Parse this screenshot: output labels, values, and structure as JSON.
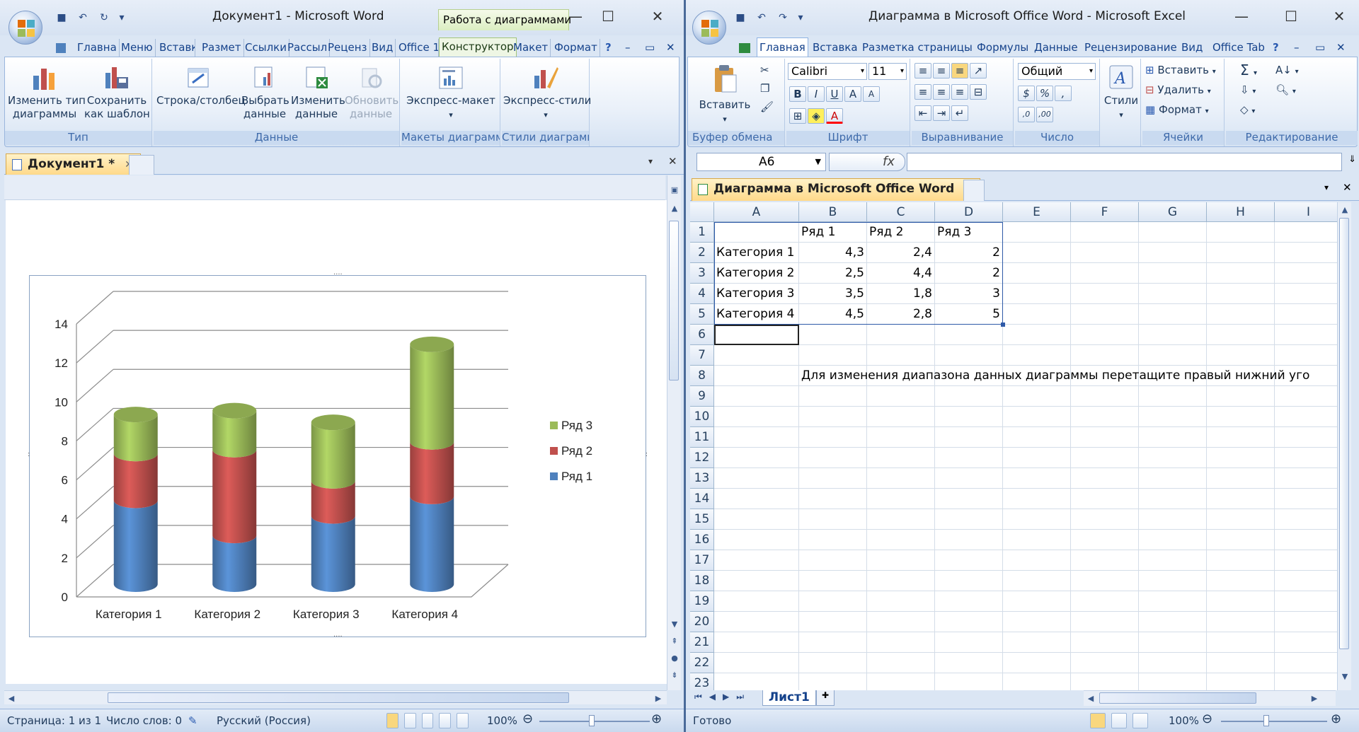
{
  "word": {
    "title": "Документ1 - Microsoft Word",
    "context_tab": "Работа с диаграммами",
    "tabs": [
      "Главна",
      "Меню",
      "Вставка",
      "Размет",
      "Ссылки",
      "Рассыл",
      "Реценз",
      "Вид",
      "Office 1",
      "Конструктор",
      "Макет",
      "Формат"
    ],
    "ribbon": {
      "groups": [
        {
          "label": "Тип",
          "buttons": [
            {
              "label1": "Изменить тип",
              "label2": "диаграммы",
              "icon": "chart-type-icon"
            },
            {
              "label1": "Сохранить",
              "label2": "как шаблон",
              "icon": "save-template-icon"
            }
          ]
        },
        {
          "label": "Данные",
          "buttons": [
            {
              "label1": "Строка/столбец",
              "label2": "",
              "icon": "switch-row-column-icon"
            },
            {
              "label1": "Выбрать",
              "label2": "данные",
              "icon": "select-data-icon"
            },
            {
              "label1": "Изменить",
              "label2": "данные",
              "icon": "edit-data-icon"
            },
            {
              "label1": "Обновить",
              "label2": "данные",
              "icon": "refresh-data-icon"
            }
          ]
        },
        {
          "label": "Макеты диаграмм",
          "buttons": [
            {
              "label1": "Экспресс-макет",
              "label2": "",
              "icon": "quick-layout-icon"
            }
          ]
        },
        {
          "label": "Стили диаграмм",
          "buttons": [
            {
              "label1": "Экспресс-стили",
              "label2": "",
              "icon": "quick-styles-icon"
            }
          ]
        }
      ]
    },
    "doc_tab": "Документ1 *",
    "status": {
      "page": "Страница: 1 из 1",
      "words": "Число слов: 0",
      "lang": "Русский (Россия)",
      "zoom": "100%"
    }
  },
  "chart_data": {
    "type": "bar",
    "categories": [
      "Категория 1",
      "Категория 2",
      "Категория 3",
      "Категория 4"
    ],
    "series": [
      {
        "name": "Ряд 1",
        "values": [
          4.3,
          2.5,
          3.5,
          4.5
        ],
        "color": "#4f81bd"
      },
      {
        "name": "Ряд 2",
        "values": [
          2.4,
          4.4,
          1.8,
          2.8
        ],
        "color": "#c0504d"
      },
      {
        "name": "Ряд 3",
        "values": [
          2,
          2,
          3,
          5
        ],
        "color": "#9bbb59"
      }
    ],
    "stacked": true,
    "yticks": [
      "0",
      "2",
      "4",
      "6",
      "8",
      "10",
      "12",
      "14"
    ],
    "ylim": [
      0,
      14
    ],
    "legend_position": "right",
    "grid": true
  },
  "excel": {
    "title": "Диаграмма в Microsoft Office Word - Microsoft Excel",
    "tabs": [
      "Главная",
      "Вставка",
      "Разметка страницы",
      "Формулы",
      "Данные",
      "Рецензирование",
      "Вид",
      "Office Tab"
    ],
    "font_name": "Calibri",
    "font_size": "11",
    "number_format": "Общий",
    "paste_label": "Вставить",
    "styles_label": "Стили",
    "cells_buttons": [
      "Вставить",
      "Удалить",
      "Формат"
    ],
    "groups": [
      "Буфер обмена",
      "Шрифт",
      "Выравнивание",
      "Число",
      "Ячейки",
      "Редактирование"
    ],
    "name_box": "A6",
    "fx": "fx",
    "doc_tab": "Диаграмма в Microsoft Office Word",
    "columns": [
      "A",
      "B",
      "C",
      "D",
      "E",
      "F",
      "G",
      "H",
      "I"
    ],
    "rows": [
      "1",
      "2",
      "3",
      "4",
      "5",
      "6",
      "7",
      "8",
      "9",
      "10",
      "11",
      "12",
      "13",
      "14",
      "15",
      "16",
      "17",
      "18",
      "19",
      "20",
      "21",
      "22",
      "23"
    ],
    "table": {
      "header": [
        "",
        "Ряд 1",
        "Ряд 2",
        "Ряд 3"
      ],
      "data": [
        [
          "Категория 1",
          "4,3",
          "2,4",
          "2"
        ],
        [
          "Категория 2",
          "2,5",
          "4,4",
          "2"
        ],
        [
          "Категория 3",
          "3,5",
          "1,8",
          "3"
        ],
        [
          "Категория 4",
          "4,5",
          "2,8",
          "5"
        ]
      ]
    },
    "hint": "Для изменения диапазона данных диаграммы перетащите правый нижний уго",
    "sheet_tab": "Лист1",
    "status": {
      "ready": "Готово",
      "zoom": "100%"
    }
  }
}
